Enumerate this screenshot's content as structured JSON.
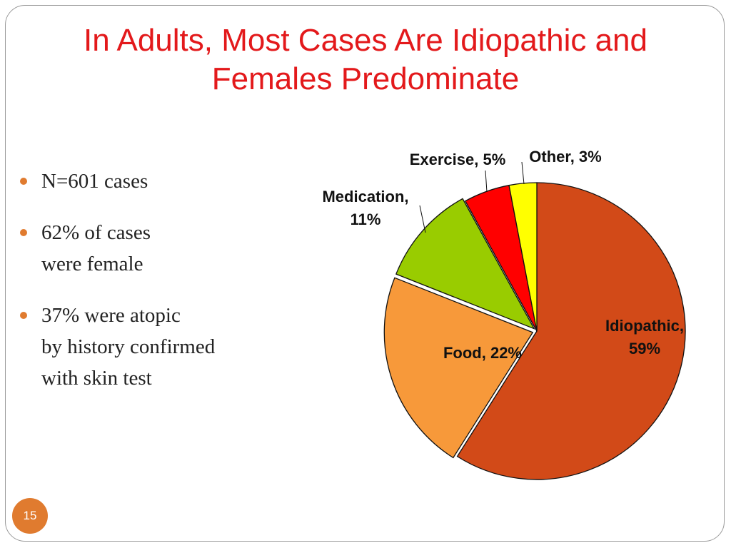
{
  "slide": {
    "title_line1": "In Adults, Most Cases Are Idiopathic and",
    "title_line2": "Females Predominate",
    "page_number": "15",
    "accent_color": "#e07b2f",
    "title_color": "#e3191b"
  },
  "bullets": [
    {
      "lines": [
        "N=601 cases"
      ]
    },
    {
      "lines": [
        "62% of cases",
        "were female"
      ]
    },
    {
      "lines": [
        "37% were atopic",
        "by history confirmed",
        "with skin test"
      ]
    }
  ],
  "chart_data": {
    "type": "pie",
    "title": "",
    "slices": [
      {
        "name": "Idiopathic",
        "value": 59,
        "label_lines": [
          "Idiopathic,",
          "59%"
        ],
        "color": "#d24a18"
      },
      {
        "name": "Food",
        "value": 22,
        "label_lines": [
          "Food, 22%"
        ],
        "color": "#f7993a"
      },
      {
        "name": "Medication",
        "value": 11,
        "label_lines": [
          "Medication,",
          "11%"
        ],
        "color": "#99cc00"
      },
      {
        "name": "Exercise",
        "value": 5,
        "label_lines": [
          "Exercise, 5%"
        ],
        "color": "#ff0000"
      },
      {
        "name": "Other",
        "value": 3,
        "label_lines": [
          "Other, 3%"
        ],
        "color": "#ffff00"
      }
    ],
    "start": "12 o'clock",
    "direction": "clockwise",
    "exploded": true
  }
}
